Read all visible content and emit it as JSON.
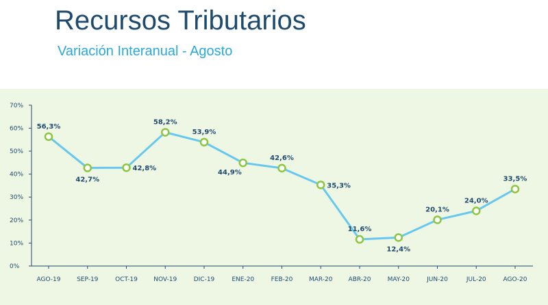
{
  "header": {
    "title": "Recursos Tributarios",
    "subtitle": "Variación Interanual - Agosto"
  },
  "colors": {
    "title": "#1e4a6e",
    "subtitle": "#2aa9d8",
    "panel_bg": "#eef6e4",
    "line": "#66c8ee",
    "marker_stroke": "#8cc63f",
    "axis_text": "#1e4a6e"
  },
  "chart_data": {
    "type": "line",
    "title": "",
    "xlabel": "",
    "ylabel": "",
    "ylim": [
      0,
      70
    ],
    "yticks": [
      "0%",
      "10%",
      "20%",
      "30%",
      "40%",
      "50%",
      "60%",
      "70%"
    ],
    "ytick_values": [
      0,
      10,
      20,
      30,
      40,
      50,
      60,
      70
    ],
    "grid": false,
    "categories": [
      "AGO-19",
      "SEP-19",
      "OCT-19",
      "NOV-19",
      "DIC-19",
      "ENE-20",
      "FEB-20",
      "MAR-20",
      "ABR-20",
      "MAY-20",
      "JUN-20",
      "JUL-20",
      "AGO-20"
    ],
    "values": [
      56.3,
      42.7,
      42.8,
      58.2,
      53.9,
      44.9,
      42.6,
      35.3,
      11.6,
      12.4,
      20.1,
      24.0,
      33.5
    ],
    "data_labels": [
      "56,3%",
      "42,7%",
      "42,8%",
      "58,2%",
      "53,9%",
      "44,9%",
      "42,6%",
      "35,3%",
      "11,6%",
      "12,4%",
      "20,1%",
      "24,0%",
      "33,5%"
    ],
    "label_positions": [
      "above",
      "below",
      "right",
      "above",
      "above",
      "below-left",
      "above",
      "right",
      "above",
      "below",
      "above",
      "above",
      "above"
    ]
  }
}
